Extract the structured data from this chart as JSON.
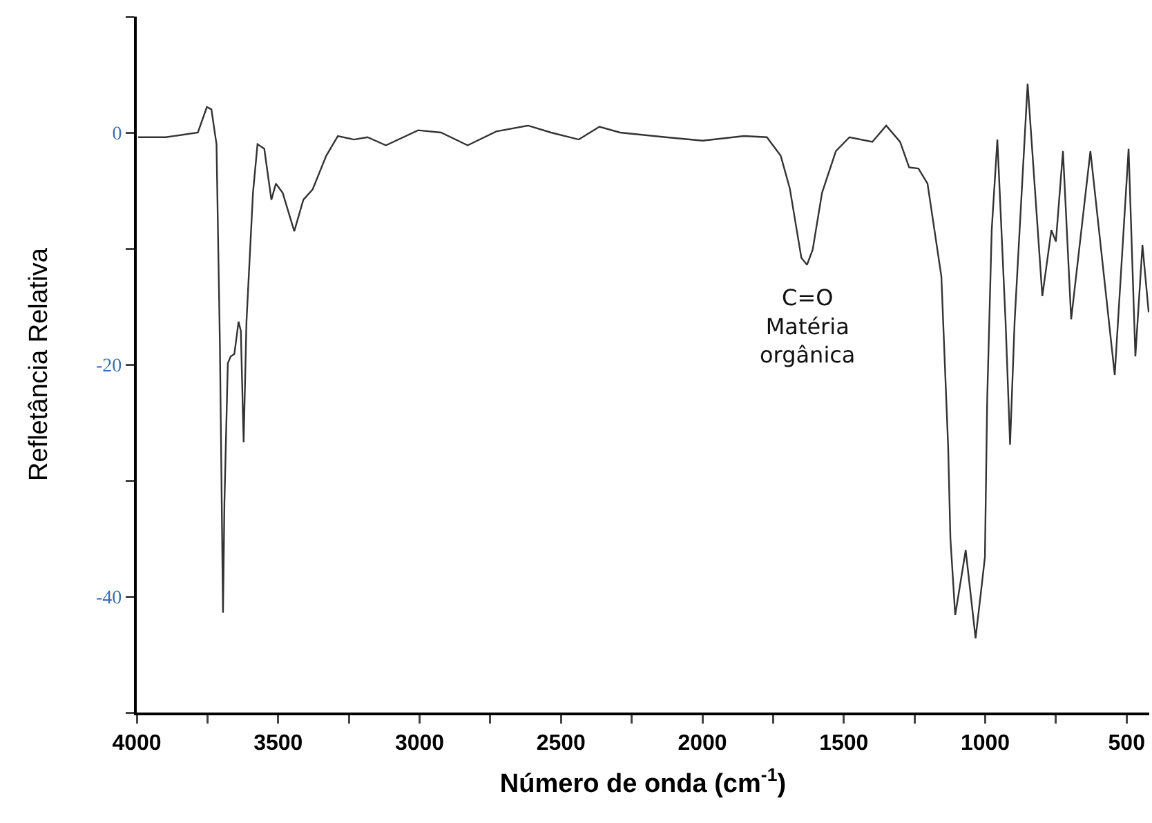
{
  "chart_data": {
    "type": "line",
    "xlabel": "Número de onda (cm$^{-1}$)",
    "ylabel": "Refletância Relativa",
    "annotations": [
      {
        "text": "C=O\nMatéria\norgânica",
        "x": 1630,
        "y": -11.4
      }
    ],
    "xlim": [
      4000,
      420
    ],
    "xticks": [
      4000,
      {
        "value": 3750,
        "label": null
      },
      3500,
      {
        "value": 3250,
        "label": null
      },
      3000,
      {
        "value": 2750,
        "label": null
      },
      2500,
      {
        "value": 2250,
        "label": null
      },
      2000,
      {
        "value": 1750,
        "label": null
      },
      1500,
      {
        "value": 1250,
        "label": null
      },
      1000,
      {
        "value": 750,
        "label": null
      },
      500
    ],
    "ylim": [
      -50,
      10
    ],
    "yticks": [
      {
        "value": 10,
        "label": null
      },
      0,
      {
        "value": -10,
        "label": null
      },
      -20,
      {
        "value": -30,
        "label": null
      },
      -40,
      {
        "value": -50,
        "label": null
      }
    ],
    "x": [
      3995,
      3898,
      3784,
      3752,
      3736,
      3718,
      3706,
      3695,
      3690,
      3678,
      3668,
      3655,
      3640,
      3632,
      3622,
      3612,
      3589,
      3573,
      3549,
      3524,
      3508,
      3484,
      3443,
      3411,
      3378,
      3330,
      3289,
      3232,
      3184,
      3119,
      3005,
      2924,
      2830,
      2729,
      2616,
      2535,
      2437,
      2364,
      2291,
      2129,
      1999,
      1853,
      1772,
      1723,
      1691,
      1650,
      1630,
      1610,
      1577,
      1528,
      1480,
      1399,
      1350,
      1301,
      1269,
      1236,
      1204,
      1155,
      1131,
      1123,
      1106,
      1069,
      1034,
      1014,
      1001,
      993,
      977,
      957,
      928,
      912,
      896,
      850,
      798,
      766,
      750,
      725,
      696,
      628,
      542,
      493,
      469,
      444,
      422
    ],
    "series": [
      {
        "color": "#333333",
        "values": [
          -0.4,
          -0.4,
          0,
          2.2,
          2.0,
          -1,
          -18.3,
          -41.4,
          -32,
          -19.9,
          -19.3,
          -19.1,
          -16.3,
          -17.1,
          -26.7,
          -16.3,
          -5.2,
          -1.0,
          -1.4,
          -5.8,
          -4.4,
          -5.2,
          -8.5,
          -5.8,
          -4.9,
          -2,
          -0.3,
          -0.6,
          -0.4,
          -1.1,
          0.2,
          0,
          -1.1,
          0.1,
          0.6,
          0,
          -0.6,
          0.5,
          0,
          -0.4,
          -0.7,
          -0.3,
          -0.4,
          -2.0,
          -4.8,
          -10.8,
          -11.4,
          -10.1,
          -5.2,
          -1.6,
          -0.4,
          -0.8,
          0.6,
          -0.8,
          -3.0,
          -3.1,
          -4.4,
          -12.4,
          -27.1,
          -35.0,
          -41.6,
          -36.0,
          -43.6,
          -39.4,
          -36.6,
          -23.1,
          -8.4,
          -0.6,
          -16.3,
          -26.9,
          -16.3,
          4.2,
          -14.1,
          -8.4,
          -9.4,
          -1.6,
          -16.1,
          -1.6,
          -20.9,
          -1.4,
          -19.3,
          -9.7,
          -15.5
        ]
      }
    ]
  }
}
